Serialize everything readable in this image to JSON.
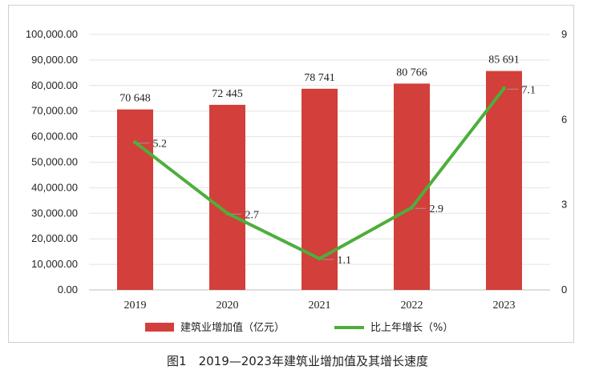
{
  "caption": "图1　2019—2023年建筑业增加值及其增长速度",
  "chart_data": {
    "type": "bar+line",
    "categories": [
      "2019",
      "2020",
      "2021",
      "2022",
      "2023"
    ],
    "series": [
      {
        "name": "建筑业增加值（亿元）",
        "type": "bar",
        "axis": "left",
        "values": [
          70648,
          72445,
          78741,
          80766,
          85691
        ],
        "labels": [
          "70 648",
          "72 445",
          "78 741",
          "80 766",
          "85 691"
        ],
        "color": "#d33f3a"
      },
      {
        "name": "比上年增长（%）",
        "type": "line",
        "axis": "right",
        "values": [
          5.2,
          2.7,
          1.1,
          2.9,
          7.1
        ],
        "labels": [
          "5.2",
          "2.7",
          "1.1",
          "2.9",
          "7.1"
        ],
        "color": "#4caf3a"
      }
    ],
    "y_left": {
      "ylim": [
        0,
        100000
      ],
      "ticks": [
        "0.00",
        "10,000.00",
        "20,000.00",
        "30,000.00",
        "40,000.00",
        "50,000.00",
        "60,000.00",
        "70,000.00",
        "80,000.00",
        "90,000.00",
        "100,000.00"
      ]
    },
    "y_right": {
      "ylim": [
        0,
        9
      ],
      "ticks": [
        "0",
        "3",
        "6",
        "9"
      ]
    },
    "grid": true,
    "legend_position": "bottom"
  }
}
